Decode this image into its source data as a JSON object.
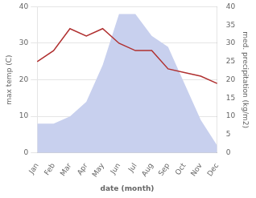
{
  "chart_data": {
    "type": "line",
    "categories": [
      "Jan",
      "Feb",
      "Mar",
      "Apr",
      "May",
      "Jun",
      "Jul",
      "Aug",
      "Sep",
      "Oct",
      "Nov",
      "Dec"
    ],
    "series": [
      {
        "type": "area",
        "axis": "y2",
        "color": "#c8d0ee",
        "values": [
          8,
          8,
          10,
          14,
          24,
          38,
          38,
          32,
          29,
          19,
          9,
          2
        ]
      },
      {
        "type": "line",
        "color": "#b03030",
        "values": [
          25,
          28,
          34,
          32,
          34,
          30,
          28,
          28,
          23,
          22,
          21,
          19
        ]
      }
    ],
    "xlabel": "date (month)",
    "ylabel": "max temp (C)",
    "y2label": "med. precipitation (kg/m2)",
    "ylim": [
      0,
      40
    ],
    "yticks": [
      0,
      10,
      20,
      30,
      40
    ],
    "y2lim": [
      0,
      40
    ],
    "y2ticks": [
      0,
      5,
      10,
      15,
      20,
      25,
      30,
      35,
      40
    ],
    "grid": true
  }
}
